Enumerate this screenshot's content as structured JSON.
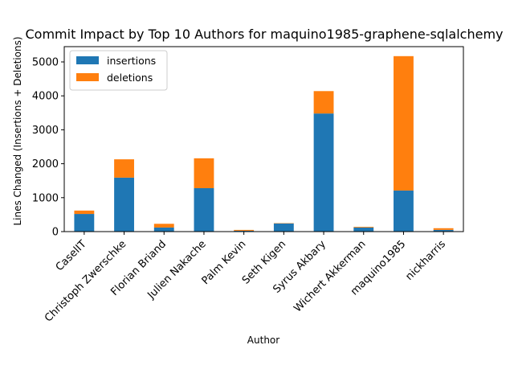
{
  "chart_data": {
    "type": "bar",
    "stacked": true,
    "title": "Commit Impact by Top 10 Authors for maquino1985-graphene-sqlalchemy",
    "xlabel": "Author",
    "ylabel": "Lines Changed (Insertions + Deletions)",
    "ylim": [
      0,
      5450
    ],
    "yticks": [
      0,
      1000,
      2000,
      3000,
      4000,
      5000
    ],
    "legend_position": "top-left",
    "grid": false,
    "categories": [
      "CaselIT",
      "Christoph Zwerschke",
      "Florian Briand",
      "Julien Nakache",
      "Palm Kevin",
      "Seth Kigen",
      "Syrus Akbary",
      "Wichert Akkerman",
      "maquino1985",
      "nickharris"
    ],
    "series": [
      {
        "name": "insertions",
        "color": "#1f77b4",
        "values": [
          520,
          1590,
          120,
          1280,
          25,
          240,
          3480,
          120,
          1210,
          50
        ]
      },
      {
        "name": "deletions",
        "color": "#ff7f0e",
        "values": [
          100,
          540,
          110,
          880,
          25,
          10,
          660,
          20,
          3960,
          50
        ]
      }
    ]
  }
}
